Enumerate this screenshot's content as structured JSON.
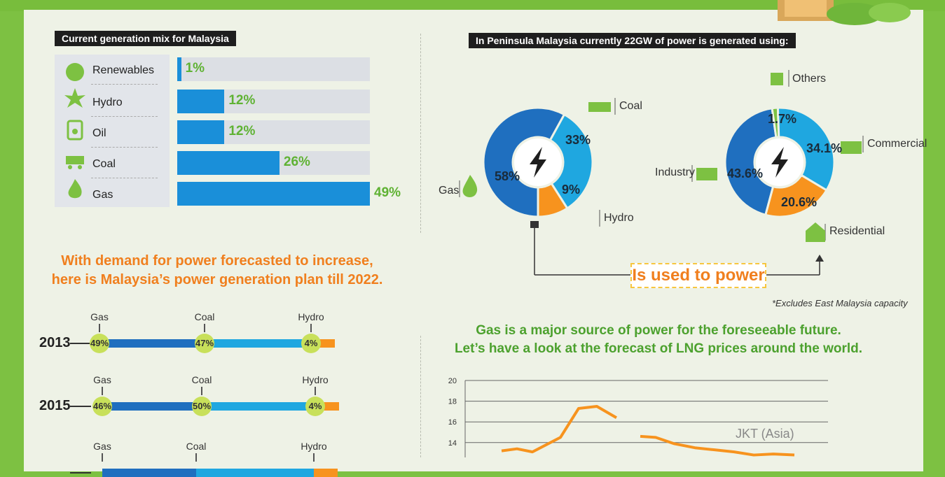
{
  "colors": {
    "dark_blue": "#1f6fbf",
    "light_blue": "#1fa7e0",
    "orange": "#f7931e",
    "green": "#7dc142",
    "bar_blue": "#1a8fd9",
    "bar_track": "#dcdfe4",
    "pct_green": "#5fb233"
  },
  "headers": {
    "mix": "Current generation mix  for Malaysia",
    "peninsula": "In Peninsula Malaysia currently 22GW of power is generated using:"
  },
  "plan_text": {
    "line1": "With demand for power forecasted to increase,",
    "line2": "here is Malaysia’s power generation plan till 2022."
  },
  "lng_text": {
    "line1": "Gas is a major source of power for the foreseeable future.",
    "line2": "Let’s have a look at the forecast of LNG prices around the world."
  },
  "used_label": "Is used to power",
  "note": "*Excludes East Malaysia capacity",
  "chart_data": [
    {
      "type": "bar",
      "title": "Current generation mix  for Malaysia",
      "categories": [
        "Renewables",
        "Hydro",
        "Oil",
        "Coal",
        "Gas"
      ],
      "values": [
        1,
        12,
        12,
        26,
        49
      ],
      "labels": [
        "1%",
        "12%",
        "12%",
        "26%",
        "49%"
      ],
      "icons": [
        "sun-icon",
        "hydro-turbine-icon",
        "oil-can-icon",
        "coal-cart-icon",
        "flame-icon"
      ]
    },
    {
      "type": "pie",
      "title": "In Peninsula Malaysia currently 22GW of power is generated using:",
      "categories": [
        "Gas",
        "Coal",
        "Hydro"
      ],
      "values": [
        58,
        33,
        9
      ],
      "labels": [
        "58%",
        "33%",
        "9%"
      ]
    },
    {
      "type": "pie",
      "categories": [
        "Industry",
        "Others",
        "Commercial",
        "Residential"
      ],
      "values": [
        43.6,
        1.7,
        34.1,
        20.6
      ],
      "labels": [
        "43.6%",
        "1.7%",
        "34.1%",
        "20.6%"
      ]
    },
    {
      "type": "bar",
      "categories": [
        "Gas",
        "Coal",
        "Hydro"
      ],
      "years": [
        {
          "year": "2013",
          "values": [
            "49%",
            "47%",
            "4%"
          ]
        },
        {
          "year": "2015",
          "values": [
            "46%",
            "50%",
            "4%"
          ]
        },
        {
          "year": "",
          "values": [
            "",
            "",
            ""
          ]
        }
      ]
    },
    {
      "type": "line",
      "title": "",
      "y_ticks": [
        "20",
        "18",
        "16",
        "14"
      ],
      "ylim": [
        13,
        20
      ],
      "series": [
        {
          "name": "JKT (Asia)",
          "values": [
            13.2,
            13.4,
            13.1,
            14.5,
            17.3,
            17.5,
            16.4,
            null,
            14.6,
            14.5,
            13.9,
            13.5,
            13.3,
            13.1,
            12.8,
            12.9,
            12.8
          ]
        }
      ]
    }
  ]
}
